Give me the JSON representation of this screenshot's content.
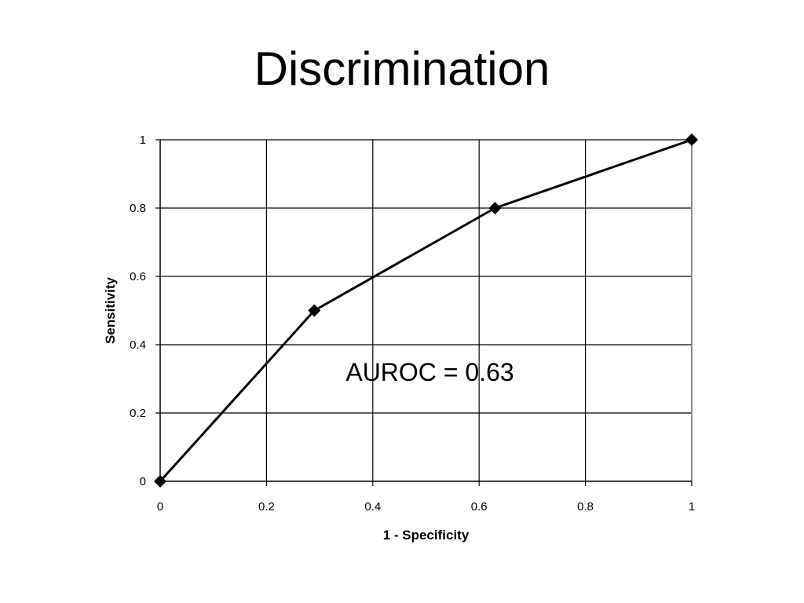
{
  "slide": {
    "title": "Discrimination"
  },
  "chart_data": {
    "type": "line",
    "title": "",
    "xlabel": "1 - Specificity",
    "ylabel": "Sensitivity",
    "xlim": [
      0,
      1
    ],
    "ylim": [
      0,
      1
    ],
    "x_ticks": [
      "0",
      "0.2",
      "0.4",
      "0.6",
      "0.8",
      "1"
    ],
    "y_ticks": [
      "0",
      "0.2",
      "0.4",
      "0.6",
      "0.8",
      "1"
    ],
    "grid": true,
    "legend": "none",
    "series": [
      {
        "x": [
          0,
          0.29,
          0.63,
          1
        ],
        "y": [
          0,
          0.5,
          0.8,
          1
        ],
        "marker": "diamond",
        "color": "#000000"
      }
    ],
    "annotations": [
      {
        "text": "AUROC = 0.63",
        "x": 0.5,
        "y": 0.32
      }
    ]
  }
}
